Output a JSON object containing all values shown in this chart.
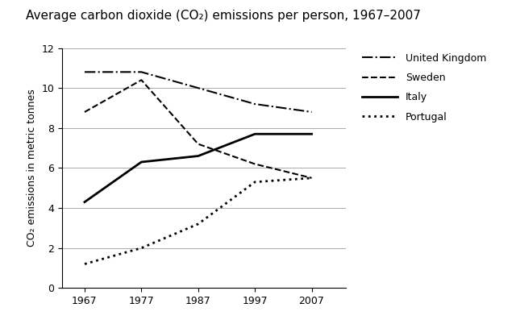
{
  "title": "Average carbon dioxide (CO₂) emissions per person, 1967–2007",
  "ylabel": "CO₂ emissions in metric tonnes",
  "years": [
    1967,
    1977,
    1987,
    1997,
    2007
  ],
  "united_kingdom": [
    10.8,
    10.8,
    10.0,
    9.2,
    8.8
  ],
  "sweden": [
    8.8,
    10.4,
    7.2,
    6.2,
    5.5
  ],
  "italy": [
    4.3,
    6.3,
    6.6,
    7.7,
    7.7
  ],
  "portugal": [
    1.2,
    2.0,
    3.2,
    5.3,
    5.5
  ],
  "ylim": [
    0,
    12
  ],
  "yticks": [
    0,
    2,
    4,
    6,
    8,
    10,
    12
  ],
  "xlim_left": 1963,
  "xlim_right": 2013,
  "bg_color": "#ffffff",
  "line_color": "#000000",
  "grid_color": "#aaaaaa",
  "title_fontsize": 11,
  "label_fontsize": 9,
  "tick_fontsize": 9,
  "legend_fontsize": 9
}
